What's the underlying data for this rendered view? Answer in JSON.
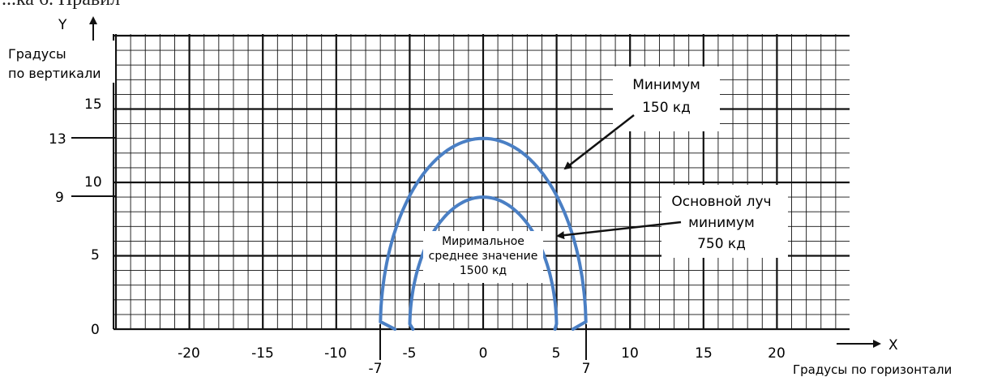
{
  "header_fragment": "...ка 6. Правил",
  "y_axis": {
    "letter": "Y",
    "label_line1": "Градусы",
    "label_line2": "по вертикали",
    "ticks": [
      "0",
      "5",
      "10",
      "15"
    ],
    "extra_marks": [
      "9",
      "13"
    ]
  },
  "x_axis": {
    "letter": "X",
    "label": "Градусы по горизонтали",
    "ticks": [
      "-20",
      "-15",
      "-10",
      "-5",
      "0",
      "5",
      "10",
      "15",
      "20"
    ],
    "extra_marks": [
      "-7",
      "7"
    ]
  },
  "callouts": {
    "minimum": {
      "line1": "Минимум",
      "line2": "150 кд"
    },
    "main_beam": {
      "line1": "Основной луч",
      "line2": "минимум",
      "line3": "750 кд"
    },
    "mean": {
      "line1": "Миримальное",
      "line2": "среднее значение",
      "line3": "1500 кд"
    }
  },
  "curves": {
    "outer": {
      "peak_y": 13,
      "half_width_x": 7,
      "color": "#4a7fc4"
    },
    "inner": {
      "peak_y": 9,
      "half_width_x": 5,
      "color": "#4a7fc4"
    }
  },
  "grid": {
    "major_step": 5,
    "minor_step": 1,
    "x_range": [
      -25,
      25
    ],
    "y_range": [
      0,
      20
    ]
  }
}
